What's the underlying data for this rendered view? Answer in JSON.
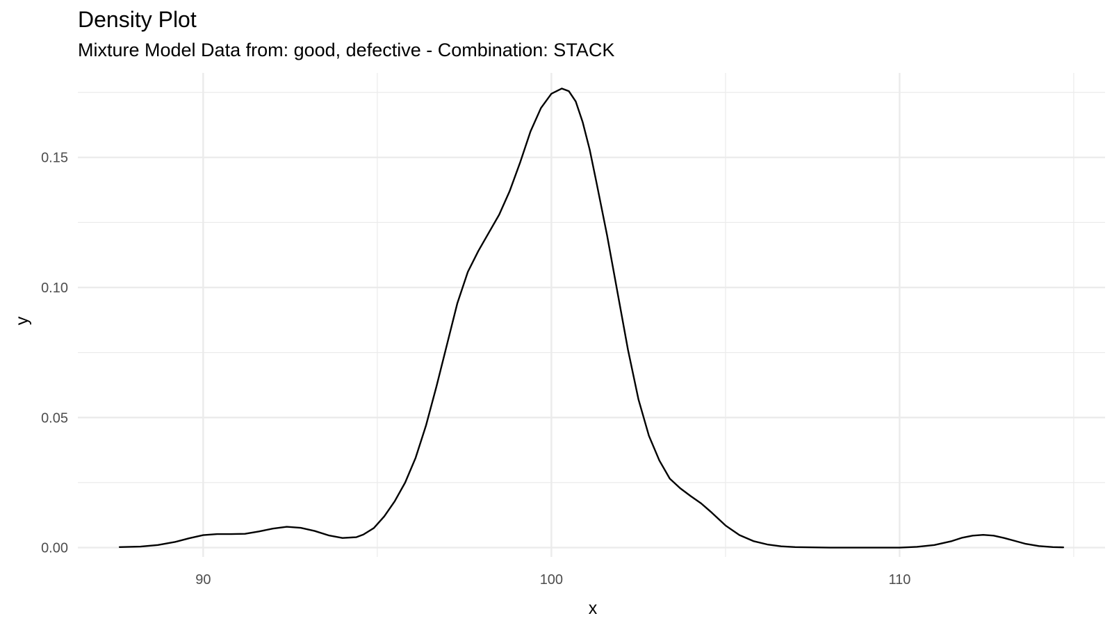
{
  "chart_data": {
    "type": "line",
    "title": "Density Plot",
    "subtitle": "Mixture Model Data from: good, defective - Combination: STACK",
    "xlabel": "x",
    "ylabel": "y",
    "xlim": [
      86.4,
      115.9
    ],
    "ylim": [
      -0.0036,
      0.1825
    ],
    "x_ticks": [
      90,
      100,
      110
    ],
    "x_tick_labels": [
      "90",
      "100",
      "110"
    ],
    "y_ticks": [
      0,
      0.05,
      0.1,
      0.15
    ],
    "y_tick_labels": [
      "0.00",
      "0.05",
      "0.10",
      "0.15"
    ],
    "grid": true,
    "legend": "none",
    "line_color": "#000000",
    "grid_color": "#ebebeb",
    "series": [
      {
        "x": [
          87.6,
          88.2,
          88.7,
          89.2,
          89.6,
          90.0,
          90.4,
          90.8,
          91.2,
          91.6,
          92.0,
          92.4,
          92.8,
          93.2,
          93.6,
          94.0,
          94.4,
          94.6,
          94.9,
          95.2,
          95.5,
          95.8,
          96.1,
          96.4,
          96.7,
          97.0,
          97.3,
          97.6,
          97.9,
          98.2,
          98.5,
          98.8,
          99.1,
          99.4,
          99.7,
          100.0,
          100.3,
          100.5,
          100.7,
          100.9,
          101.1,
          101.3,
          101.6,
          101.9,
          102.2,
          102.5,
          102.8,
          103.1,
          103.4,
          103.7,
          104.0,
          104.3,
          104.6,
          105.0,
          105.4,
          105.8,
          106.2,
          106.6,
          107.0,
          107.5,
          108.0,
          108.5,
          109.0,
          110.0,
          110.5,
          111.0,
          111.5,
          111.8,
          112.1,
          112.4,
          112.7,
          113.0,
          113.3,
          113.6,
          114.0,
          114.4,
          114.7
        ],
        "y": [
          0.0002,
          0.0004,
          0.001,
          0.0022,
          0.0036,
          0.0048,
          0.0052,
          0.0052,
          0.0053,
          0.0062,
          0.0073,
          0.008,
          0.0076,
          0.0064,
          0.0047,
          0.0037,
          0.004,
          0.005,
          0.0075,
          0.012,
          0.0178,
          0.025,
          0.0345,
          0.047,
          0.062,
          0.078,
          0.094,
          0.106,
          0.114,
          0.121,
          0.128,
          0.137,
          0.148,
          0.16,
          0.169,
          0.1745,
          0.1765,
          0.1755,
          0.1715,
          0.1635,
          0.153,
          0.14,
          0.12,
          0.098,
          0.076,
          0.057,
          0.043,
          0.0335,
          0.0265,
          0.0228,
          0.0198,
          0.017,
          0.0135,
          0.0085,
          0.0048,
          0.0025,
          0.0012,
          0.0005,
          0.0002,
          0.0001,
          0.0,
          0.0,
          0.0,
          0.0,
          0.0003,
          0.001,
          0.0025,
          0.0038,
          0.0046,
          0.0049,
          0.0046,
          0.0037,
          0.0026,
          0.0015,
          0.0006,
          0.0002,
          0.0001
        ]
      }
    ]
  }
}
